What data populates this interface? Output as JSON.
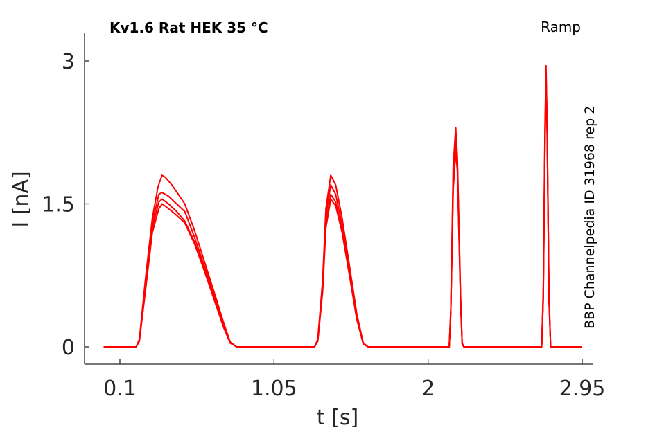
{
  "chart_data": {
    "type": "line",
    "title": "Kv1.6  Rat  HEK  35 °C",
    "subtitle": "Ramp",
    "annotation": "BBP Channelpedia ID 31968 rep 2",
    "xlabel": "t [s]",
    "ylabel": "I [nA]",
    "xlim": [
      -0.1,
      3.0
    ],
    "ylim": [
      -0.18,
      3.3
    ],
    "xticks": [
      0.1,
      1.05,
      2,
      2.95
    ],
    "xtick_labels": [
      "0.1",
      "1.05",
      "2",
      "2.95"
    ],
    "yticks": [
      0,
      1.5,
      3
    ],
    "ytick_labels": [
      "0",
      "1.5",
      "3"
    ],
    "grid": false,
    "legend": "none",
    "color": "#ff0000",
    "series": [
      {
        "points": [
          [
            -0.0,
            0.0
          ],
          [
            0.2,
            0.0
          ],
          [
            0.22,
            0.08
          ],
          [
            0.26,
            0.75
          ],
          [
            0.3,
            1.35
          ],
          [
            0.335,
            1.68
          ],
          [
            0.36,
            1.8
          ],
          [
            0.38,
            1.78
          ],
          [
            0.42,
            1.7
          ],
          [
            0.46,
            1.6
          ],
          [
            0.5,
            1.5
          ],
          [
            0.56,
            1.22
          ],
          [
            0.62,
            0.9
          ],
          [
            0.68,
            0.58
          ],
          [
            0.74,
            0.25
          ],
          [
            0.78,
            0.05
          ],
          [
            0.82,
            0.0
          ],
          [
            1.3,
            0.0
          ],
          [
            1.32,
            0.08
          ],
          [
            1.35,
            0.7
          ],
          [
            1.37,
            1.45
          ],
          [
            1.4,
            1.8
          ],
          [
            1.43,
            1.7
          ],
          [
            1.47,
            1.35
          ],
          [
            1.52,
            0.8
          ],
          [
            1.56,
            0.35
          ],
          [
            1.6,
            0.04
          ],
          [
            1.63,
            0.0
          ],
          [
            2.13,
            0.0
          ],
          [
            2.14,
            0.4
          ],
          [
            2.155,
            1.9
          ],
          [
            2.17,
            2.3
          ],
          [
            2.18,
            2.0
          ],
          [
            2.19,
            1.3
          ],
          [
            2.2,
            0.55
          ],
          [
            2.21,
            0.04
          ],
          [
            2.22,
            0.0
          ],
          [
            2.7,
            0.0
          ],
          [
            2.71,
            0.6
          ],
          [
            2.72,
            2.3
          ],
          [
            2.727,
            2.95
          ],
          [
            2.734,
            2.35
          ],
          [
            2.745,
            0.6
          ],
          [
            2.755,
            0.0
          ],
          [
            2.95,
            0.0
          ]
        ]
      },
      {
        "points": [
          [
            -0.0,
            0.0
          ],
          [
            0.2,
            0.0
          ],
          [
            0.22,
            0.07
          ],
          [
            0.26,
            0.7
          ],
          [
            0.3,
            1.3
          ],
          [
            0.34,
            1.6
          ],
          [
            0.36,
            1.62
          ],
          [
            0.4,
            1.58
          ],
          [
            0.45,
            1.5
          ],
          [
            0.5,
            1.42
          ],
          [
            0.56,
            1.15
          ],
          [
            0.62,
            0.85
          ],
          [
            0.68,
            0.55
          ],
          [
            0.74,
            0.24
          ],
          [
            0.78,
            0.05
          ],
          [
            0.82,
            0.0
          ],
          [
            1.3,
            0.0
          ],
          [
            1.32,
            0.07
          ],
          [
            1.35,
            0.65
          ],
          [
            1.37,
            1.38
          ],
          [
            1.4,
            1.7
          ],
          [
            1.43,
            1.6
          ],
          [
            1.47,
            1.28
          ],
          [
            1.52,
            0.76
          ],
          [
            1.56,
            0.33
          ],
          [
            1.6,
            0.04
          ],
          [
            1.63,
            0.0
          ],
          [
            2.13,
            0.0
          ],
          [
            2.14,
            0.38
          ],
          [
            2.155,
            1.8
          ],
          [
            2.17,
            2.2
          ],
          [
            2.18,
            1.95
          ],
          [
            2.19,
            1.25
          ],
          [
            2.2,
            0.5
          ],
          [
            2.21,
            0.04
          ],
          [
            2.22,
            0.0
          ],
          [
            2.7,
            0.0
          ],
          [
            2.71,
            0.55
          ],
          [
            2.72,
            2.2
          ],
          [
            2.727,
            2.85
          ],
          [
            2.734,
            2.3
          ],
          [
            2.745,
            0.55
          ],
          [
            2.755,
            0.0
          ],
          [
            2.95,
            0.0
          ]
        ]
      },
      {
        "points": [
          [
            -0.0,
            0.0
          ],
          [
            0.2,
            0.0
          ],
          [
            0.22,
            0.06
          ],
          [
            0.26,
            0.65
          ],
          [
            0.3,
            1.25
          ],
          [
            0.34,
            1.52
          ],
          [
            0.36,
            1.55
          ],
          [
            0.4,
            1.5
          ],
          [
            0.45,
            1.42
          ],
          [
            0.5,
            1.32
          ],
          [
            0.56,
            1.1
          ],
          [
            0.62,
            0.82
          ],
          [
            0.68,
            0.52
          ],
          [
            0.74,
            0.22
          ],
          [
            0.78,
            0.04
          ],
          [
            0.82,
            0.0
          ],
          [
            1.3,
            0.0
          ],
          [
            1.32,
            0.06
          ],
          [
            1.35,
            0.6
          ],
          [
            1.37,
            1.3
          ],
          [
            1.4,
            1.6
          ],
          [
            1.43,
            1.52
          ],
          [
            1.47,
            1.22
          ],
          [
            1.52,
            0.72
          ],
          [
            1.56,
            0.3
          ],
          [
            1.6,
            0.03
          ],
          [
            1.63,
            0.0
          ],
          [
            2.13,
            0.0
          ],
          [
            2.14,
            0.36
          ],
          [
            2.155,
            1.7
          ],
          [
            2.17,
            2.12
          ],
          [
            2.18,
            1.9
          ],
          [
            2.19,
            1.2
          ],
          [
            2.2,
            0.48
          ],
          [
            2.21,
            0.03
          ],
          [
            2.22,
            0.0
          ],
          [
            2.7,
            0.0
          ],
          [
            2.71,
            0.5
          ],
          [
            2.72,
            2.1
          ],
          [
            2.727,
            2.8
          ],
          [
            2.734,
            2.25
          ],
          [
            2.745,
            0.5
          ],
          [
            2.755,
            0.0
          ],
          [
            2.95,
            0.0
          ]
        ]
      },
      {
        "points": [
          [
            -0.0,
            0.0
          ],
          [
            0.2,
            0.0
          ],
          [
            0.22,
            0.06
          ],
          [
            0.26,
            0.62
          ],
          [
            0.3,
            1.2
          ],
          [
            0.34,
            1.45
          ],
          [
            0.36,
            1.5
          ],
          [
            0.4,
            1.45
          ],
          [
            0.45,
            1.38
          ],
          [
            0.5,
            1.3
          ],
          [
            0.56,
            1.08
          ],
          [
            0.62,
            0.8
          ],
          [
            0.68,
            0.5
          ],
          [
            0.74,
            0.2
          ],
          [
            0.78,
            0.04
          ],
          [
            0.82,
            0.0
          ],
          [
            1.3,
            0.0
          ],
          [
            1.32,
            0.06
          ],
          [
            1.35,
            0.58
          ],
          [
            1.37,
            1.25
          ],
          [
            1.4,
            1.55
          ],
          [
            1.43,
            1.48
          ],
          [
            1.47,
            1.2
          ],
          [
            1.52,
            0.7
          ],
          [
            1.56,
            0.29
          ],
          [
            1.6,
            0.03
          ],
          [
            1.63,
            0.0
          ],
          [
            2.13,
            0.0
          ],
          [
            2.14,
            0.35
          ],
          [
            2.155,
            1.65
          ],
          [
            2.17,
            2.05
          ],
          [
            2.18,
            1.85
          ],
          [
            2.19,
            1.18
          ],
          [
            2.2,
            0.46
          ],
          [
            2.21,
            0.03
          ],
          [
            2.22,
            0.0
          ],
          [
            2.7,
            0.0
          ],
          [
            2.71,
            0.5
          ],
          [
            2.72,
            2.1
          ],
          [
            2.727,
            2.8
          ],
          [
            2.734,
            2.22
          ],
          [
            2.745,
            0.5
          ],
          [
            2.755,
            0.0
          ],
          [
            2.95,
            0.0
          ]
        ]
      }
    ]
  }
}
